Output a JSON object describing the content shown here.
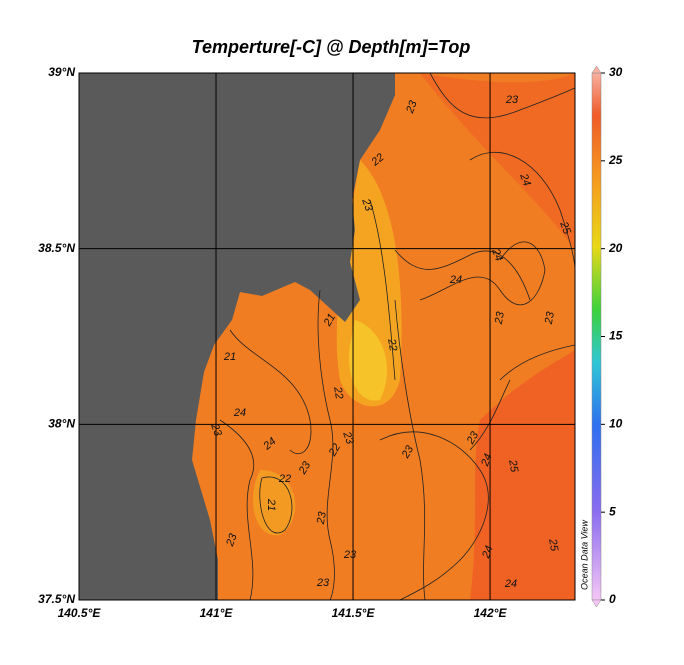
{
  "title": "Temperture[-C] @ Depth[m]=Top",
  "watermark": "Ocean Data View",
  "xlim": [
    140.5,
    142.31
  ],
  "ylim": [
    37.5,
    39
  ],
  "xticks": [
    {
      "value": 140.5,
      "label": "140.5°E"
    },
    {
      "value": 141,
      "label": "141°E"
    },
    {
      "value": 141.5,
      "label": "141.5°E"
    },
    {
      "value": 142,
      "label": "142°E"
    }
  ],
  "yticks": [
    {
      "value": 37.5,
      "label": "37.5°N"
    },
    {
      "value": 38,
      "label": "38°N"
    },
    {
      "value": 38.5,
      "label": "38.5°N"
    },
    {
      "value": 39,
      "label": "39°N"
    }
  ],
  "colorbar": {
    "range": [
      0,
      30
    ],
    "ticks": [
      0,
      5,
      10,
      15,
      20,
      25,
      30
    ]
  },
  "contour_labels": [
    "23",
    "23",
    "24",
    "22",
    "23",
    "24",
    "25",
    "24",
    "23",
    "23",
    "21",
    "22",
    "22",
    "23",
    "21",
    "24",
    "23",
    "24",
    "22",
    "23",
    "22",
    "21",
    "23",
    "23",
    "23",
    "24",
    "25",
    "23",
    "23",
    "23",
    "24",
    "24",
    "25"
  ]
}
